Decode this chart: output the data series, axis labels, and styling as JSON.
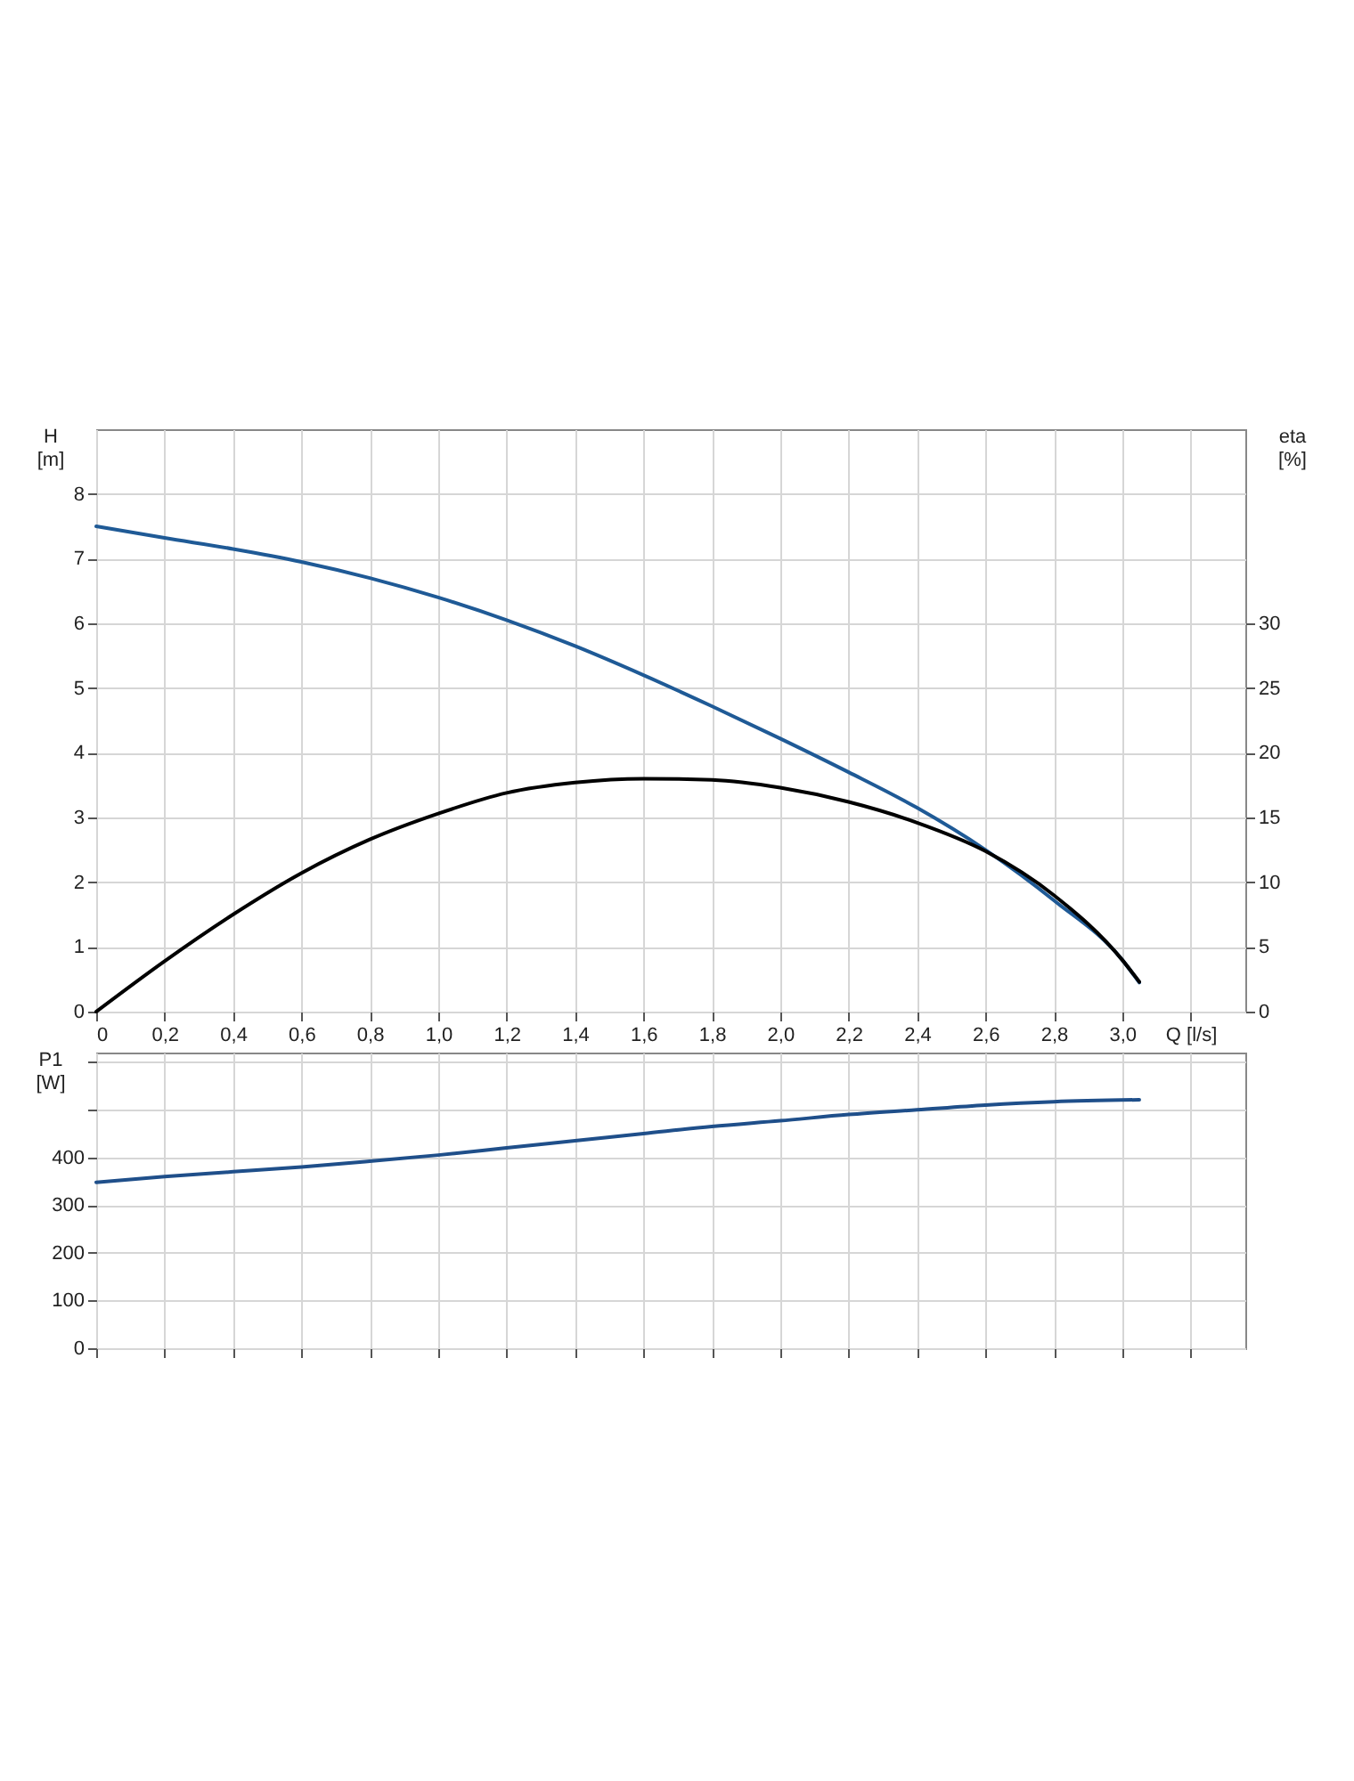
{
  "chart_data": [
    {
      "type": "line",
      "ylabel": "H [m]",
      "y2label": "eta [%]",
      "grid": true,
      "xlim": [
        0,
        3.36
      ],
      "xticks": [
        0,
        {
          "value": 0.2,
          "label": "0,2"
        },
        {
          "value": 0.4,
          "label": "0,4"
        },
        {
          "value": 0.6,
          "label": "0,6"
        },
        {
          "value": 0.8,
          "label": "0,8"
        },
        {
          "value": 1.0,
          "label": "1,0"
        },
        {
          "value": 1.2,
          "label": "1,2"
        },
        {
          "value": 1.4,
          "label": "1,4"
        },
        {
          "value": 1.6,
          "label": "1,6"
        },
        {
          "value": 1.8,
          "label": "1,8"
        },
        {
          "value": 2.0,
          "label": "2,0"
        },
        {
          "value": 2.2,
          "label": "2,2"
        },
        {
          "value": 2.4,
          "label": "2,4"
        },
        {
          "value": 2.6,
          "label": "2,6"
        },
        {
          "value": 2.8,
          "label": "2,8"
        },
        {
          "value": 3.0,
          "label": "3,0"
        },
        {
          "value": 3.2,
          "label": "Q [l/s]"
        }
      ],
      "ylim": [
        0,
        9
      ],
      "yticks": [
        0,
        1,
        2,
        3,
        4,
        5,
        6,
        7,
        8
      ],
      "y2lim": [
        0,
        45
      ],
      "y2ticks": [
        0,
        5,
        10,
        15,
        20,
        25,
        30
      ],
      "x": [
        0,
        0.2,
        0.4,
        0.6,
        0.8,
        1.0,
        1.2,
        1.4,
        1.6,
        1.8,
        2.0,
        2.2,
        2.4,
        2.6,
        2.8,
        3.0,
        3.05
      ],
      "series": [
        {
          "color": "#1f5a96",
          "values": [
            7.5,
            7.32,
            7.15,
            6.95,
            6.7,
            6.4,
            6.05,
            5.65,
            5.2,
            4.72,
            4.22,
            3.7,
            3.15,
            2.5,
            1.72,
            0.8,
            0.45
          ]
        },
        {
          "color": "#000000",
          "axis": "y2",
          "values": [
            0,
            3.9,
            7.5,
            10.7,
            13.3,
            15.3,
            16.9,
            17.7,
            18.0,
            17.9,
            17.3,
            16.2,
            14.6,
            12.4,
            9.0,
            4.0,
            2.3
          ]
        }
      ]
    },
    {
      "type": "line",
      "ylabel": "P1 [W]",
      "grid": true,
      "tick_labels": "y",
      "xlim": [
        0,
        3.36
      ],
      "xticks": [
        0,
        0.2,
        0.4,
        0.6,
        0.8,
        1.0,
        1.2,
        1.4,
        1.6,
        1.8,
        2.0,
        2.2,
        2.4,
        2.6,
        2.8,
        3.0,
        3.2
      ],
      "ylim": [
        0,
        620
      ],
      "yticks": [
        0,
        100,
        200,
        300,
        400,
        {
          "value": 500,
          "label": null
        },
        {
          "value": 600,
          "label": null
        }
      ],
      "x": [
        0,
        0.2,
        0.4,
        0.6,
        0.8,
        1.0,
        1.2,
        1.4,
        1.6,
        1.8,
        2.0,
        2.2,
        2.4,
        2.6,
        2.8,
        3.05
      ],
      "series": [
        {
          "color": "#1f4f8a",
          "values": [
            348,
            360,
            370,
            380,
            392,
            405,
            420,
            435,
            450,
            465,
            477,
            490,
            500,
            510,
            517,
            521
          ]
        }
      ]
    }
  ]
}
